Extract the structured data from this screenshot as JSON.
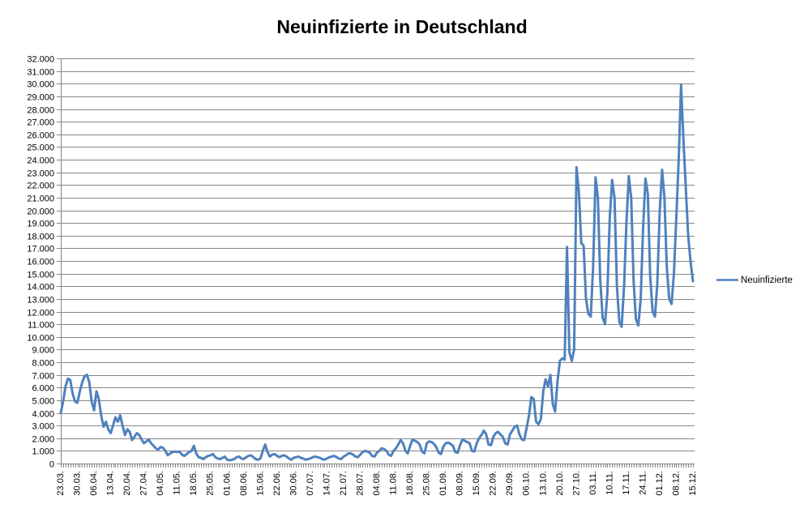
{
  "title": "Neuinfizierte in Deutschland",
  "legend": {
    "label": "Neuinfizierte",
    "position": "right"
  },
  "chart_data": {
    "type": "line",
    "title": "Neuinfizierte in Deutschland",
    "xlabel": "",
    "ylabel": "",
    "background": "#FFFFFF",
    "gridline_color": "#868686",
    "axis_color": "#868686",
    "grid": "horizontal",
    "legend_position": "right",
    "y_min": 0,
    "y_max": 32000,
    "y_step": 1000,
    "y_tick_labels": [
      "0",
      "1.000",
      "2.000",
      "3.000",
      "4.000",
      "5.000",
      "6.000",
      "7.000",
      "8.000",
      "9.000",
      "10.000",
      "11.000",
      "12.000",
      "13.000",
      "14.000",
      "15.000",
      "16.000",
      "17.000",
      "18.000",
      "19.000",
      "20.000",
      "21.000",
      "22.000",
      "23.000",
      "24.000",
      "25.000",
      "26.000",
      "27.000",
      "28.000",
      "29.000",
      "30.000",
      "31.000",
      "32.000"
    ],
    "x_ticks_every_n_points": 7,
    "x_tick_labels": [
      "23.03.",
      "30.03.",
      "06.04.",
      "13.04.",
      "20.04.",
      "27.04.",
      "04.05.",
      "11.05.",
      "18.05.",
      "25.05.",
      "01.06.",
      "08.06.",
      "15.06.",
      "22.06.",
      "30.06.",
      "07.07.",
      "14.07.",
      "21.07.",
      "28.07.",
      "04.08.",
      "11.08.",
      "18.08.",
      "25.08.",
      "01.09.",
      "08.09.",
      "15.09.",
      "22.09.",
      "29.09.",
      "06.10.",
      "13.10.",
      "20.10.",
      "27.10.",
      "03.11.",
      "10.11.",
      "17.11.",
      "24.11.",
      "01.12.",
      "08.12.",
      "15.12."
    ],
    "series": [
      {
        "name": "Neuinfizierte",
        "color": "#4F81BD",
        "values": [
          4000,
          4900,
          6100,
          6700,
          6600,
          5500,
          4900,
          4800,
          5700,
          6400,
          6900,
          7000,
          6400,
          4900,
          4200,
          5700,
          5100,
          3800,
          2900,
          3300,
          2700,
          2400,
          3000,
          3650,
          3300,
          3800,
          3000,
          2250,
          2700,
          2500,
          1850,
          2100,
          2400,
          2250,
          1900,
          1600,
          1750,
          1900,
          1600,
          1400,
          1200,
          1100,
          1300,
          1250,
          1000,
          650,
          800,
          900,
          950,
          900,
          950,
          700,
          600,
          750,
          900,
          1000,
          1400,
          800,
          500,
          450,
          350,
          500,
          600,
          650,
          750,
          500,
          400,
          350,
          450,
          550,
          300,
          250,
          300,
          350,
          500,
          550,
          400,
          350,
          500,
          600,
          650,
          500,
          350,
          300,
          400,
          1000,
          1500,
          900,
          550,
          700,
          750,
          600,
          500,
          600,
          650,
          550,
          400,
          300,
          450,
          500,
          550,
          450,
          400,
          300,
          350,
          400,
          500,
          550,
          500,
          450,
          350,
          300,
          400,
          500,
          550,
          600,
          500,
          400,
          350,
          550,
          650,
          800,
          800,
          700,
          550,
          500,
          700,
          900,
          1000,
          950,
          850,
          600,
          550,
          850,
          1000,
          1200,
          1150,
          1000,
          700,
          600,
          1000,
          1200,
          1500,
          1850,
          1600,
          1000,
          800,
          1400,
          1900,
          1800,
          1700,
          1500,
          950,
          800,
          1600,
          1750,
          1700,
          1550,
          1300,
          850,
          750,
          1350,
          1600,
          1650,
          1550,
          1400,
          900,
          850,
          1450,
          1900,
          1800,
          1700,
          1600,
          1000,
          950,
          1600,
          2000,
          2250,
          2600,
          2300,
          1500,
          1450,
          2100,
          2400,
          2500,
          2300,
          2100,
          1600,
          1500,
          2300,
          2600,
          2900,
          3000,
          2300,
          1900,
          1850,
          2800,
          3800,
          5250,
          5100,
          3300,
          3100,
          3500,
          5700,
          6650,
          6100,
          7000,
          4700,
          4100,
          6500,
          8100,
          8300,
          8200,
          17100,
          8800,
          8100,
          9000,
          23400,
          21500,
          17400,
          17200,
          13000,
          11800,
          11600,
          15500,
          22600,
          21000,
          14500,
          11500,
          11000,
          13500,
          19500,
          22400,
          21000,
          14000,
          11200,
          10800,
          14000,
          19000,
          22700,
          21000,
          14500,
          11400,
          10900,
          13000,
          18500,
          22500,
          21300,
          14800,
          12000,
          11600,
          14200,
          19800,
          23200,
          21000,
          15500,
          13000,
          12600,
          15000,
          19500,
          24000,
          29900,
          25500,
          21700,
          18000,
          15900,
          14400
        ]
      }
    ]
  }
}
